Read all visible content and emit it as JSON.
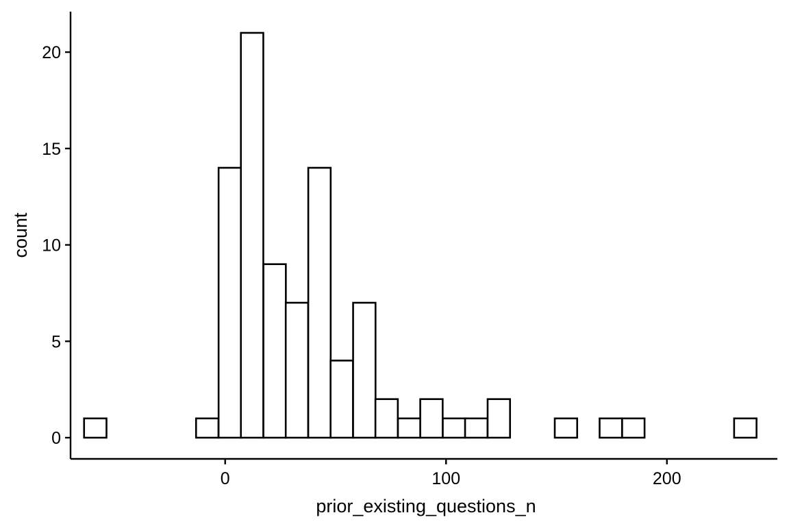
{
  "chart_data": {
    "type": "bar",
    "title": "",
    "xlabel": "prior_existing_questions_n",
    "ylabel": "count",
    "bin_width": 10.15,
    "bins": [
      {
        "center": -58.8,
        "count": 1
      },
      {
        "center": -48.7,
        "count": 0
      },
      {
        "center": -38.5,
        "count": 0
      },
      {
        "center": -28.4,
        "count": 0
      },
      {
        "center": -18.2,
        "count": 0
      },
      {
        "center": -8.1,
        "count": 1
      },
      {
        "center": 2.1,
        "count": 14
      },
      {
        "center": 12.2,
        "count": 21
      },
      {
        "center": 22.4,
        "count": 9
      },
      {
        "center": 32.5,
        "count": 7
      },
      {
        "center": 42.7,
        "count": 14
      },
      {
        "center": 52.8,
        "count": 4
      },
      {
        "center": 63.0,
        "count": 7
      },
      {
        "center": 73.1,
        "count": 2
      },
      {
        "center": 83.3,
        "count": 1
      },
      {
        "center": 93.4,
        "count": 2
      },
      {
        "center": 103.6,
        "count": 1
      },
      {
        "center": 113.7,
        "count": 1
      },
      {
        "center": 123.9,
        "count": 2
      },
      {
        "center": 134.0,
        "count": 0
      },
      {
        "center": 144.2,
        "count": 0
      },
      {
        "center": 154.3,
        "count": 1
      },
      {
        "center": 164.5,
        "count": 0
      },
      {
        "center": 174.6,
        "count": 1
      },
      {
        "center": 184.8,
        "count": 1
      },
      {
        "center": 194.9,
        "count": 0
      },
      {
        "center": 205.1,
        "count": 0
      },
      {
        "center": 215.2,
        "count": 0
      },
      {
        "center": 225.4,
        "count": 0
      },
      {
        "center": 235.5,
        "count": 1
      }
    ],
    "xlim": [
      -70,
      250
    ],
    "ylim": [
      -1.1,
      22.1
    ],
    "x_ticks": [
      0,
      100,
      200
    ],
    "x_tick_labels": [
      "0",
      "100",
      "200"
    ],
    "y_ticks": [
      0,
      5,
      10,
      15,
      20
    ],
    "y_tick_labels": [
      "0",
      "5",
      "10",
      "15",
      "20"
    ],
    "grid": false,
    "legend": "none",
    "colors": {
      "fill": "#ffffff",
      "outline": "#000000"
    }
  }
}
